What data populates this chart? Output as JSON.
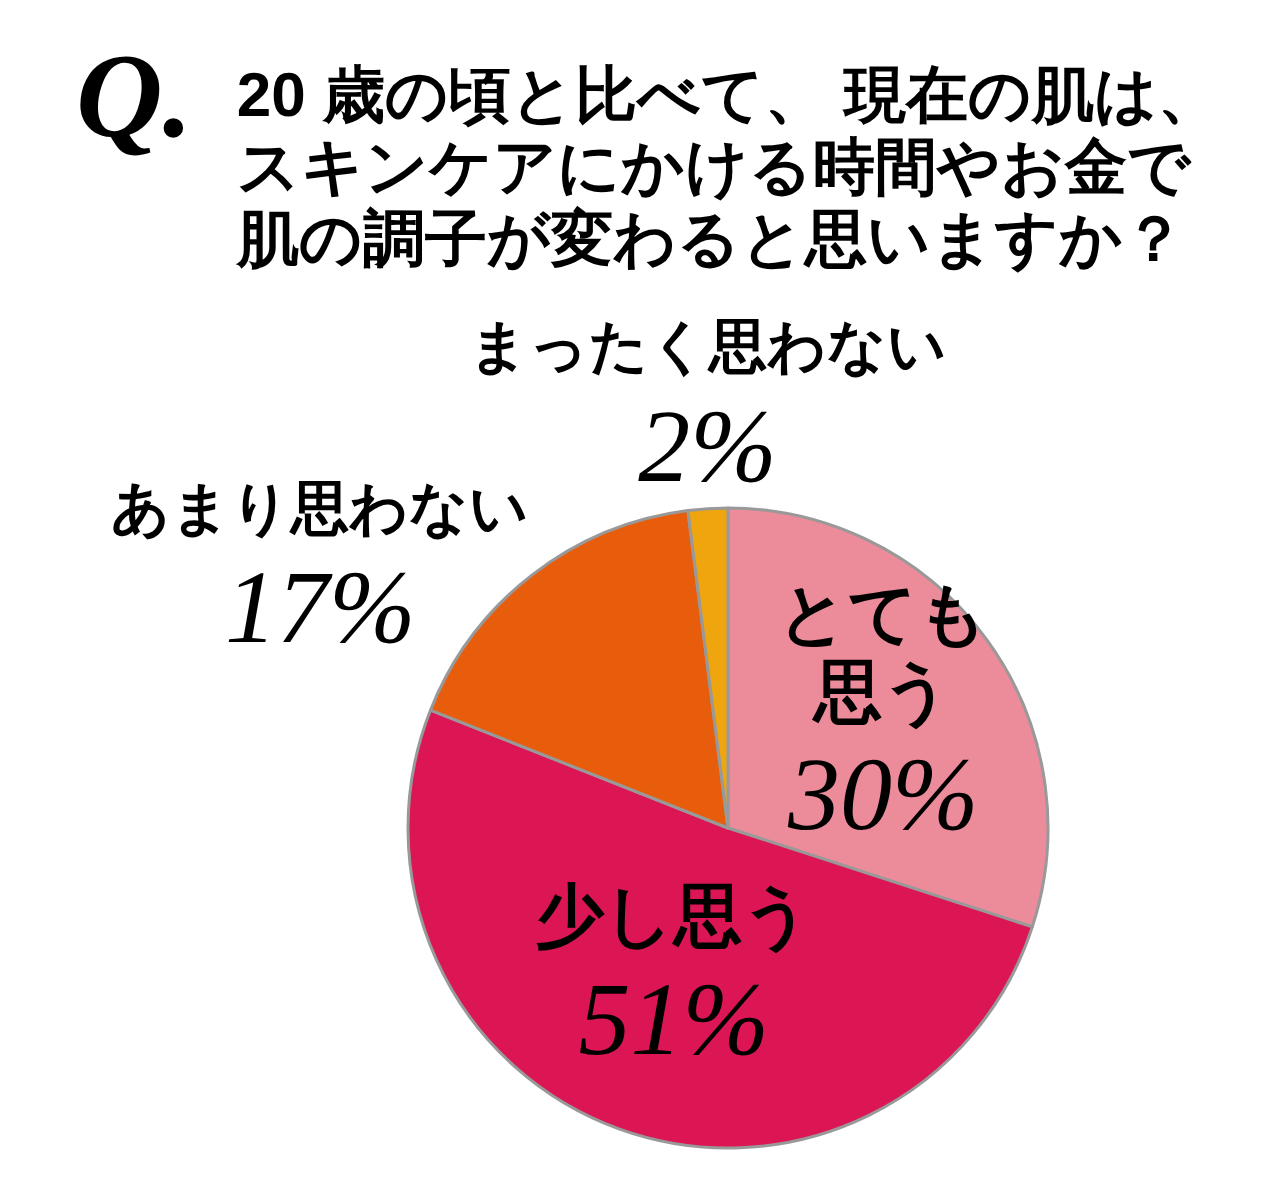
{
  "chart_data": {
    "type": "pie",
    "title": "20 歳の頃と比べて、 現在の肌は、スキンケアにかける時間やお金で肌の調子が変わると思いますか？",
    "annotations": [
      "Q."
    ],
    "categories": [
      "とても思う",
      "少し思う",
      "あまり思わない",
      "まったく思わない"
    ],
    "values": [
      30,
      51,
      17,
      2
    ],
    "colors": [
      "#ec8b99",
      "#dc1655",
      "#e85d0c",
      "#eea50e"
    ],
    "value_labels": [
      "30%",
      "51%",
      "17%",
      "2%"
    ]
  }
}
